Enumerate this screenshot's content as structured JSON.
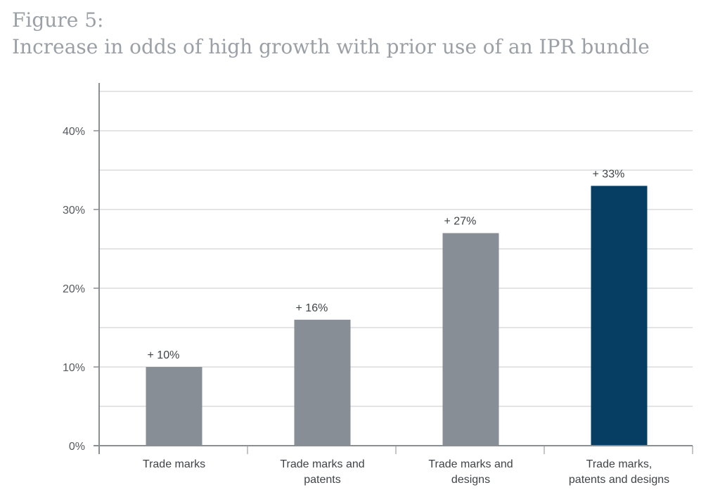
{
  "figure": {
    "number": "Figure 5:",
    "title": "Increase in odds of high growth with prior use of an IPR bundle"
  },
  "chart_data": {
    "type": "bar",
    "title": "Increase in odds of high growth with prior use of an IPR bundle",
    "xlabel": "",
    "ylabel": "",
    "ylim": [
      0,
      45
    ],
    "yticks": [
      0,
      10,
      20,
      30,
      40
    ],
    "ytick_labels": [
      "0%",
      "10%",
      "20%",
      "30%",
      "40%"
    ],
    "gridlines": [
      5,
      10,
      15,
      20,
      25,
      30,
      35,
      40,
      45
    ],
    "grid": true,
    "categories": [
      [
        "Trade marks"
      ],
      [
        "Trade marks and",
        "patents"
      ],
      [
        "Trade marks and",
        "designs"
      ],
      [
        "Trade marks,",
        "patents and designs"
      ]
    ],
    "values": [
      10,
      16,
      27,
      33
    ],
    "data_labels": [
      "+ 10%",
      "+ 16%",
      "+ 27%",
      "+ 33%"
    ],
    "colors": [
      "#878e95",
      "#878e95",
      "#878e95",
      "#063d63"
    ],
    "grid_color": "#c8cacc",
    "axis_color": "#8a8f94"
  }
}
